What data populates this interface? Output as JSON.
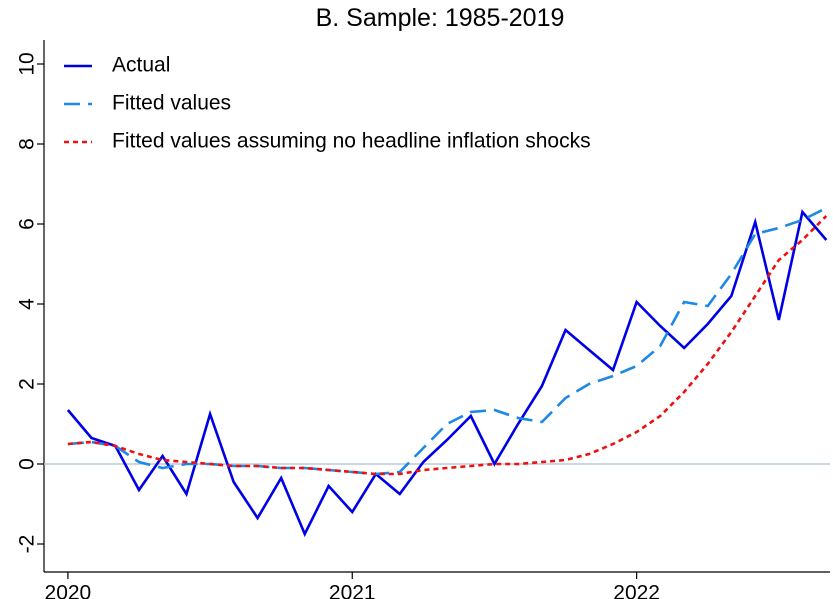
{
  "chart_data": {
    "type": "line",
    "title": "B. Sample: 1985-2019",
    "x": [
      2020,
      2020.083,
      2020.167,
      2020.25,
      2020.333,
      2020.417,
      2020.5,
      2020.583,
      2020.667,
      2020.75,
      2020.833,
      2020.917,
      2021,
      2021.083,
      2021.167,
      2021.25,
      2021.333,
      2021.417,
      2021.5,
      2021.583,
      2021.667,
      2021.75,
      2021.833,
      2021.917,
      2022,
      2022.083,
      2022.167,
      2022.25,
      2022.333,
      2022.417,
      2022.5,
      2022.583,
      2022.667
    ],
    "series": [
      {
        "name": "Actual",
        "color": "#0000e6",
        "dash": "solid",
        "values": [
          1.35,
          0.65,
          0.45,
          -0.65,
          0.2,
          -0.75,
          1.25,
          -0.45,
          -1.35,
          -0.35,
          -1.75,
          -0.55,
          -1.2,
          -0.25,
          -0.75,
          0.05,
          0.6,
          1.2,
          0.0,
          1.0,
          1.95,
          3.35,
          2.85,
          2.35,
          4.05,
          3.45,
          2.9,
          3.5,
          4.2,
          6.05,
          3.6,
          6.3,
          5.6
        ]
      },
      {
        "name": "Fitted values",
        "color": "#1e88e5",
        "dash": "long",
        "values": [
          0.5,
          0.55,
          0.45,
          0.05,
          -0.1,
          0.0,
          0.0,
          -0.05,
          -0.05,
          -0.1,
          -0.1,
          -0.15,
          -0.2,
          -0.25,
          -0.2,
          0.4,
          1.0,
          1.3,
          1.35,
          1.15,
          1.05,
          1.65,
          2.0,
          2.2,
          2.45,
          2.95,
          4.05,
          3.95,
          4.75,
          5.75,
          5.9,
          6.1,
          6.4
        ]
      },
      {
        "name": "Fitted values assuming no headline inflation shocks",
        "color": "#ee1111",
        "dash": "short",
        "values": [
          0.5,
          0.55,
          0.45,
          0.25,
          0.1,
          0.05,
          0.0,
          -0.05,
          -0.05,
          -0.1,
          -0.1,
          -0.15,
          -0.2,
          -0.25,
          -0.25,
          -0.15,
          -0.1,
          -0.05,
          0.0,
          0.0,
          0.05,
          0.1,
          0.25,
          0.5,
          0.8,
          1.2,
          1.8,
          2.5,
          3.3,
          4.2,
          5.1,
          5.6,
          6.2
        ]
      }
    ],
    "xlim": [
      2019.916,
      2022.68
    ],
    "xticks": [
      2020,
      2021,
      2022
    ],
    "ylim": [
      -2.7,
      10.6
    ],
    "yticks": [
      -2,
      0,
      2,
      4,
      6,
      8,
      10
    ],
    "zero_line": true,
    "legend": "top-left"
  }
}
